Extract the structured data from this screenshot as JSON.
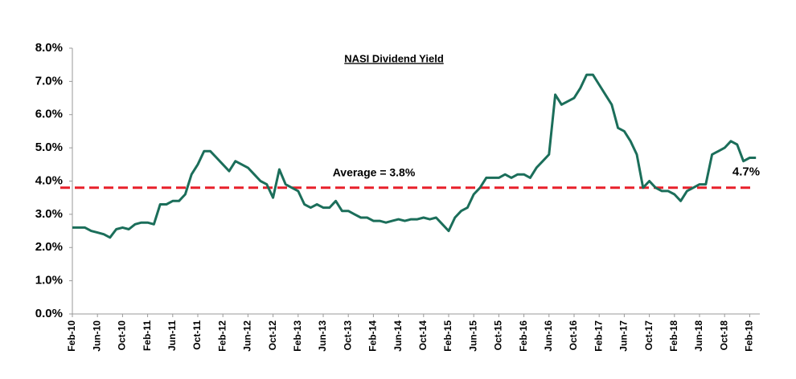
{
  "chart_data": {
    "type": "line",
    "title": "NASI Dividend Yield",
    "categories": [
      "Feb-10",
      null,
      null,
      null,
      "Jun-10",
      null,
      null,
      null,
      "Oct-10",
      null,
      null,
      null,
      "Feb-11",
      null,
      null,
      null,
      "Jun-11",
      null,
      null,
      null,
      "Oct-11",
      null,
      null,
      null,
      "Feb-12",
      null,
      null,
      null,
      "Jun-12",
      null,
      null,
      null,
      "Oct-12",
      null,
      null,
      null,
      "Feb-13",
      null,
      null,
      null,
      "Jun-13",
      null,
      null,
      null,
      "Oct-13",
      null,
      null,
      null,
      "Feb-14",
      null,
      null,
      null,
      "Jun-14",
      null,
      null,
      null,
      "Oct-14",
      null,
      null,
      null,
      "Feb-15",
      null,
      null,
      null,
      "Jun-15",
      null,
      null,
      null,
      "Oct-15",
      null,
      null,
      null,
      "Feb-16",
      null,
      null,
      null,
      "Jun-16",
      null,
      null,
      null,
      "Oct-16",
      null,
      null,
      null,
      "Feb-17",
      null,
      null,
      null,
      "Jun-17",
      null,
      null,
      null,
      "Oct-17",
      null,
      null,
      null,
      "Feb-18",
      null,
      null,
      null,
      "Jun-18",
      null,
      null,
      null,
      "Oct-18",
      null,
      null,
      null,
      "Feb-19",
      null
    ],
    "series": [
      {
        "name": "NASI Dividend Yield",
        "color": "#1b6e5a",
        "values": [
          2.6,
          2.6,
          2.6,
          2.5,
          2.45,
          2.4,
          2.3,
          2.55,
          2.6,
          2.55,
          2.7,
          2.75,
          2.75,
          2.7,
          3.3,
          3.3,
          3.4,
          3.4,
          3.6,
          4.2,
          4.5,
          4.9,
          4.9,
          4.7,
          4.5,
          4.3,
          4.6,
          4.5,
          4.4,
          4.2,
          4.0,
          3.9,
          3.5,
          4.35,
          3.9,
          3.8,
          3.7,
          3.3,
          3.2,
          3.3,
          3.2,
          3.2,
          3.4,
          3.1,
          3.1,
          3.0,
          2.9,
          2.9,
          2.8,
          2.8,
          2.75,
          2.8,
          2.85,
          2.8,
          2.85,
          2.85,
          2.9,
          2.85,
          2.9,
          2.7,
          2.5,
          2.9,
          3.1,
          3.2,
          3.6,
          3.8,
          4.1,
          4.1,
          4.1,
          4.2,
          4.1,
          4.2,
          4.2,
          4.1,
          4.4,
          4.6,
          4.8,
          6.6,
          6.3,
          6.4,
          6.5,
          6.8,
          7.2,
          7.2,
          6.9,
          6.6,
          6.3,
          5.6,
          5.5,
          5.2,
          4.8,
          3.8,
          4.0,
          3.8,
          3.7,
          3.7,
          3.6,
          3.4,
          3.7,
          3.8,
          3.9,
          3.9,
          4.8,
          4.9,
          5.0,
          5.2,
          5.1,
          4.6,
          4.7,
          4.7
        ]
      }
    ],
    "end_label": {
      "value": 4.7,
      "label": "4.7%"
    },
    "reference_line": {
      "value": 3.8,
      "label": "Average = 3.8%",
      "color": "#e8202a"
    },
    "ylim": [
      0,
      8
    ],
    "yticks": [
      {
        "value": 0,
        "label": "0.0%"
      },
      {
        "value": 1,
        "label": "1.0%"
      },
      {
        "value": 2,
        "label": "2.0%"
      },
      {
        "value": 3,
        "label": "3.0%"
      },
      {
        "value": 4,
        "label": "4.0%"
      },
      {
        "value": 5,
        "label": "5.0%"
      },
      {
        "value": 6,
        "label": "6.0%"
      },
      {
        "value": 7,
        "label": "7.0%"
      },
      {
        "value": 8,
        "label": "8.0%"
      }
    ],
    "grid": false
  }
}
